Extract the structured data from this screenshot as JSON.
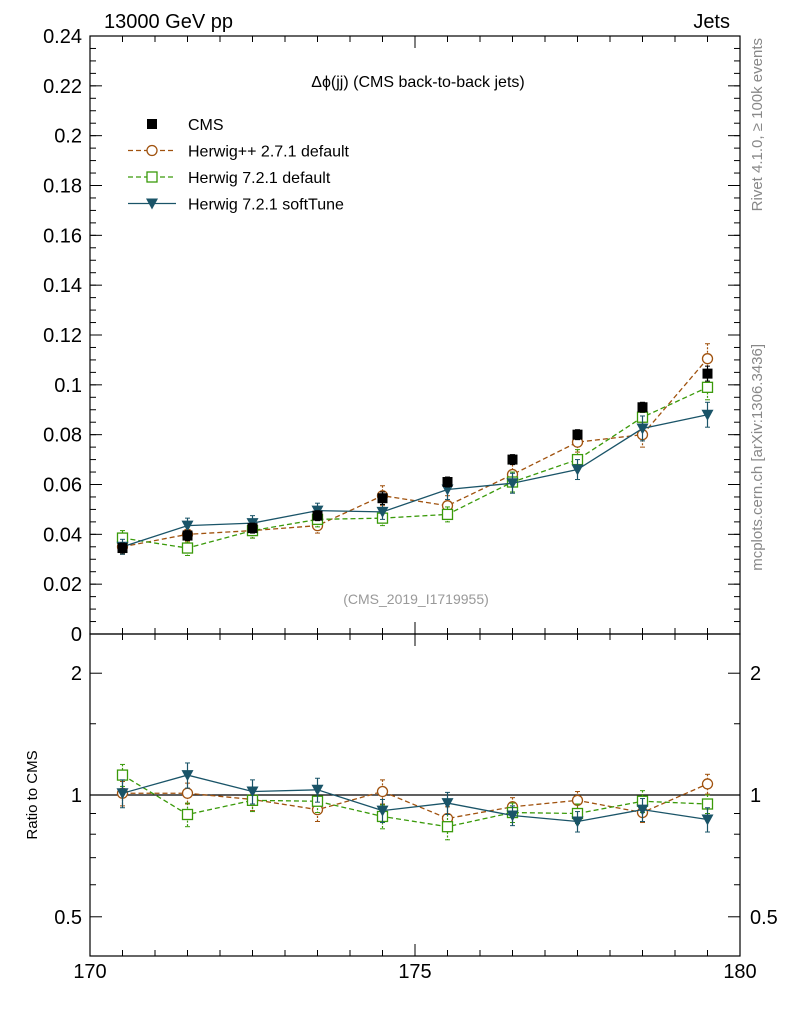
{
  "header": {
    "left": "13000 GeV pp",
    "right": "Jets"
  },
  "side_labels": {
    "rivet": "Rivet 4.1.0, ≥ 100k events",
    "mcplots": "mcplots.cern.ch [arXiv:1306.3436]"
  },
  "colors": {
    "cms": "#000000",
    "herwigpp": "#a0520e",
    "herwig721": "#3a9a0a",
    "softtune": "#1a5468"
  },
  "chart_data": [
    {
      "type": "scatter",
      "panel": "main",
      "title": "Δϕ(jj) (CMS back-to-back jets)",
      "analysis_label": "(CMS_2019_I1719955)",
      "xlim": [
        170,
        180
      ],
      "ylim": [
        0,
        0.24
      ],
      "ylabel": "",
      "yticks": [
        0,
        0.02,
        0.04,
        0.06,
        0.08,
        0.1,
        0.12,
        0.14,
        0.16,
        0.18,
        0.2,
        0.22,
        0.24
      ],
      "ytick_labels": [
        "0",
        "0.02",
        "0.04",
        "0.06",
        "0.08",
        "0.1",
        "0.12",
        "0.14",
        "0.16",
        "0.18",
        "0.2",
        "0.22",
        "0.24"
      ],
      "x": [
        170.5,
        171.5,
        172.5,
        173.5,
        174.5,
        175.5,
        176.5,
        177.5,
        178.5,
        179.5
      ],
      "series": [
        {
          "name": "CMS",
          "key": "cms",
          "style": "data",
          "marker": "square-filled",
          "values": [
            0.0345,
            0.0395,
            0.0425,
            0.0475,
            0.0545,
            0.061,
            0.07,
            0.08,
            0.091,
            0.1045
          ],
          "errors": [
            0.002,
            0.002,
            0.002,
            0.002,
            0.0025,
            0.002,
            0.002,
            0.002,
            0.002,
            0.003
          ]
        },
        {
          "name": "Herwig++ 2.7.1 default",
          "key": "herwigpp",
          "style": "dashed",
          "marker": "circle-open",
          "values": [
            0.035,
            0.04,
            0.0415,
            0.0435,
            0.0555,
            0.0515,
            0.064,
            0.077,
            0.08,
            0.1105
          ],
          "errors": [
            0.003,
            0.003,
            0.003,
            0.003,
            0.004,
            0.004,
            0.004,
            0.004,
            0.005,
            0.006
          ]
        },
        {
          "name": "Herwig 7.2.1 default",
          "key": "herwig721",
          "style": "dashed",
          "marker": "square-open",
          "values": [
            0.0385,
            0.0345,
            0.0415,
            0.046,
            0.0465,
            0.048,
            0.061,
            0.07,
            0.087,
            0.099
          ],
          "errors": [
            0.003,
            0.003,
            0.003,
            0.003,
            0.003,
            0.003,
            0.004,
            0.004,
            0.005,
            0.005
          ]
        },
        {
          "name": "Herwig 7.2.1 softTune",
          "key": "softtune",
          "style": "solid",
          "marker": "triangle-down-filled",
          "values": [
            0.035,
            0.0435,
            0.0445,
            0.0495,
            0.049,
            0.058,
            0.0605,
            0.066,
            0.0825,
            0.088
          ],
          "errors": [
            0.003,
            0.003,
            0.003,
            0.003,
            0.003,
            0.004,
            0.004,
            0.004,
            0.005,
            0.005
          ]
        }
      ]
    },
    {
      "type": "scatter",
      "panel": "ratio",
      "ylabel": "Ratio to CMS",
      "yscale": "log",
      "ylim": [
        0.4,
        2.5
      ],
      "yticks": [
        0.5,
        1,
        2
      ],
      "ytick_labels": [
        "0.5",
        "1",
        "2"
      ],
      "xlim": [
        170,
        180
      ],
      "xticks": [
        170,
        175,
        180
      ],
      "xtick_labels": [
        "170",
        "175",
        "180"
      ],
      "reference_line": 1,
      "x": [
        170.5,
        171.5,
        172.5,
        173.5,
        174.5,
        175.5,
        176.5,
        177.5,
        178.5,
        179.5
      ],
      "series": [
        {
          "name": "Herwig++ 2.7.1 default",
          "key": "herwigpp",
          "style": "dashed",
          "marker": "circle-open",
          "values": [
            1.01,
            1.01,
            0.975,
            0.92,
            1.02,
            0.875,
            0.935,
            0.97,
            0.905,
            1.065
          ],
          "errors": [
            0.07,
            0.06,
            0.06,
            0.06,
            0.07,
            0.06,
            0.05,
            0.05,
            0.05,
            0.06
          ]
        },
        {
          "name": "Herwig 7.2.1 default",
          "key": "herwig721",
          "style": "dashed",
          "marker": "square-open",
          "values": [
            1.12,
            0.895,
            0.97,
            0.965,
            0.885,
            0.835,
            0.905,
            0.9,
            0.965,
            0.95
          ],
          "errors": [
            0.07,
            0.06,
            0.06,
            0.06,
            0.06,
            0.06,
            0.05,
            0.05,
            0.06,
            0.05
          ]
        },
        {
          "name": "Herwig 7.2.1 softTune",
          "key": "softtune",
          "style": "solid",
          "marker": "triangle-down-filled",
          "values": [
            1.01,
            1.12,
            1.02,
            1.03,
            0.915,
            0.955,
            0.89,
            0.86,
            0.92,
            0.87
          ],
          "errors": [
            0.08,
            0.08,
            0.07,
            0.07,
            0.06,
            0.06,
            0.05,
            0.05,
            0.06,
            0.06
          ]
        }
      ]
    }
  ]
}
